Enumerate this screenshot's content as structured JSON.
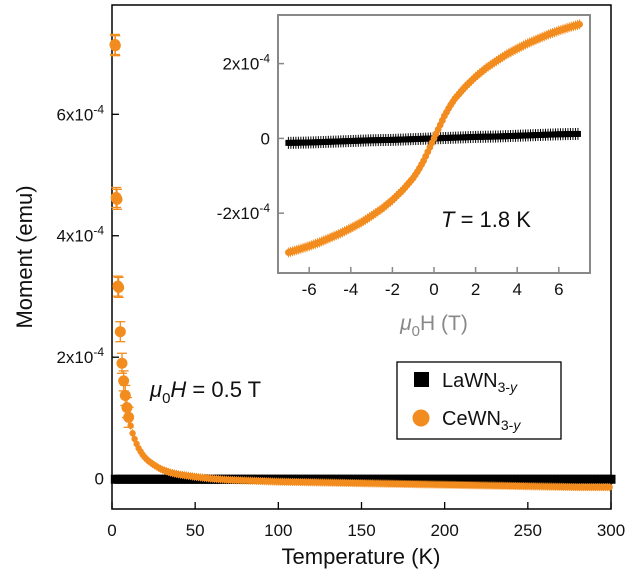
{
  "chart_data": [
    {
      "type": "scatter",
      "xlabel": "Temperature (K)",
      "ylabel": "Moment (emu)",
      "xlim": [
        0,
        300
      ],
      "ylim": [
        -5e-05,
        0.00078
      ],
      "x_ticks": [
        0,
        50,
        100,
        150,
        200,
        250,
        300
      ],
      "x_tick_labels": [
        "0",
        "50",
        "100",
        "150",
        "200",
        "250",
        "300"
      ],
      "y_ticks": [
        0,
        0.0002,
        0.0004,
        0.0006
      ],
      "y_tick_labels": [
        "0",
        "2x10^-4",
        "4x10^-4",
        "6x10^-4"
      ],
      "annotation": {
        "prefix": "μ",
        "sub": "0",
        "suffix": "H = 0.5 T"
      },
      "legend": {
        "placement": "lower-right",
        "entries": [
          {
            "name": "LaWN",
            "sub": "3-y",
            "marker": "square",
            "color": "#000000"
          },
          {
            "name": "CeWN",
            "sub": "3-y",
            "marker": "circle",
            "color": "#f28c1e"
          }
        ]
      },
      "series": [
        {
          "name": "LaWN3-y",
          "color": "#000000",
          "marker": "square",
          "x": [
            2,
            5,
            10,
            15,
            20,
            30,
            40,
            50,
            75,
            100,
            125,
            150,
            175,
            200,
            225,
            250,
            275,
            300
          ],
          "y": [
            1e-06,
            0,
            0,
            -1e-06,
            -1e-06,
            -1e-06,
            -1e-06,
            -1e-06,
            -1e-06,
            -1e-06,
            -1e-06,
            -1e-06,
            -1e-06,
            -1e-06,
            -1e-06,
            -1e-06,
            -1e-06,
            -1e-06
          ]
        },
        {
          "name": "CeWN3-y",
          "color": "#f28c1e",
          "marker": "circle",
          "x": [
            1.8,
            2,
            2.5,
            3,
            3.5,
            4,
            5,
            6,
            7,
            8,
            9,
            10,
            12,
            14,
            16,
            18,
            20,
            22,
            25,
            28,
            30,
            35,
            40,
            45,
            50,
            60,
            70,
            80,
            90,
            100,
            120,
            140,
            160,
            180,
            200,
            220,
            240,
            260,
            280,
            300
          ],
          "y": [
            0.000715,
            0.000713,
            0.000463,
            0.00046,
            0.000317,
            0.000315,
            0.000242,
            0.00019,
            0.000161,
            0.000137,
            0.000117,
            0.000101,
            7.8e-05,
            6.2e-05,
            5e-05,
            4.1e-05,
            3.4e-05,
            2.9e-05,
            2.3e-05,
            1.8e-05,
            1.5e-05,
            1e-05,
            7e-06,
            5e-06,
            3e-06,
            0,
            -2e-06,
            -3e-06,
            -4e-06,
            -5e-06,
            -6e-06,
            -7e-06,
            -8e-06,
            -9e-06,
            -1e-05,
            -1.1e-05,
            -1.2e-05,
            -1.3e-05,
            -1.4e-05,
            -1.4e-05
          ]
        }
      ]
    },
    {
      "type": "scatter",
      "xlabel": {
        "prefix": "μ",
        "sub": "0",
        "suffix": "H (T)"
      },
      "xlim": [
        -7.5,
        7.5
      ],
      "ylim": [
        -0.00036,
        0.00033
      ],
      "x_ticks": [
        -6,
        -4,
        -2,
        0,
        2,
        4,
        6
      ],
      "x_tick_labels": [
        "-6",
        "-4",
        "-2",
        "0",
        "2",
        "4",
        "6"
      ],
      "y_ticks": [
        -0.0002,
        0,
        0.0002
      ],
      "y_tick_labels": [
        "-2x10^-4",
        "0",
        "2x10^-4"
      ],
      "annotation": {
        "italic": "T",
        "suffix": " = 1.8 K"
      },
      "series": [
        {
          "name": "LaWN3-y",
          "color": "#000000",
          "marker": "square",
          "x": [
            -7,
            -6,
            -5,
            -4,
            -3,
            -2,
            -1,
            -0.5,
            0,
            0.5,
            1,
            2,
            3,
            4,
            5,
            6,
            7
          ],
          "y": [
            -1.2e-05,
            -1.1e-05,
            -9e-06,
            -7e-06,
            -5e-06,
            -4e-06,
            -2e-06,
            -1e-06,
            0,
            1e-06,
            2e-06,
            4e-06,
            5e-06,
            7e-06,
            9e-06,
            1.1e-05,
            1.2e-05
          ]
        },
        {
          "name": "CeWN3-y",
          "color": "#f28c1e",
          "marker": "circle",
          "x": [
            -7,
            -6.5,
            -6,
            -5.5,
            -5,
            -4.5,
            -4,
            -3.5,
            -3,
            -2.5,
            -2,
            -1.5,
            -1,
            -0.75,
            -0.5,
            -0.25,
            0,
            0.25,
            0.5,
            0.75,
            1,
            1.5,
            2,
            2.5,
            3,
            3.5,
            4,
            4.5,
            5,
            5.5,
            6,
            6.5,
            7
          ],
          "y": [
            -0.000305,
            -0.000297,
            -0.000288,
            -0.000278,
            -0.000266,
            -0.000254,
            -0.00024,
            -0.000225,
            -0.000207,
            -0.000188,
            -0.000165,
            -0.000138,
            -0.000106,
            -8.5e-05,
            -6e-05,
            -3e-05,
            0,
            3e-05,
            6e-05,
            8.5e-05,
            0.000106,
            0.000138,
            0.000165,
            0.000188,
            0.000207,
            0.000225,
            0.00024,
            0.000254,
            0.000266,
            0.000278,
            0.000288,
            0.000297,
            0.000305
          ]
        }
      ]
    }
  ]
}
